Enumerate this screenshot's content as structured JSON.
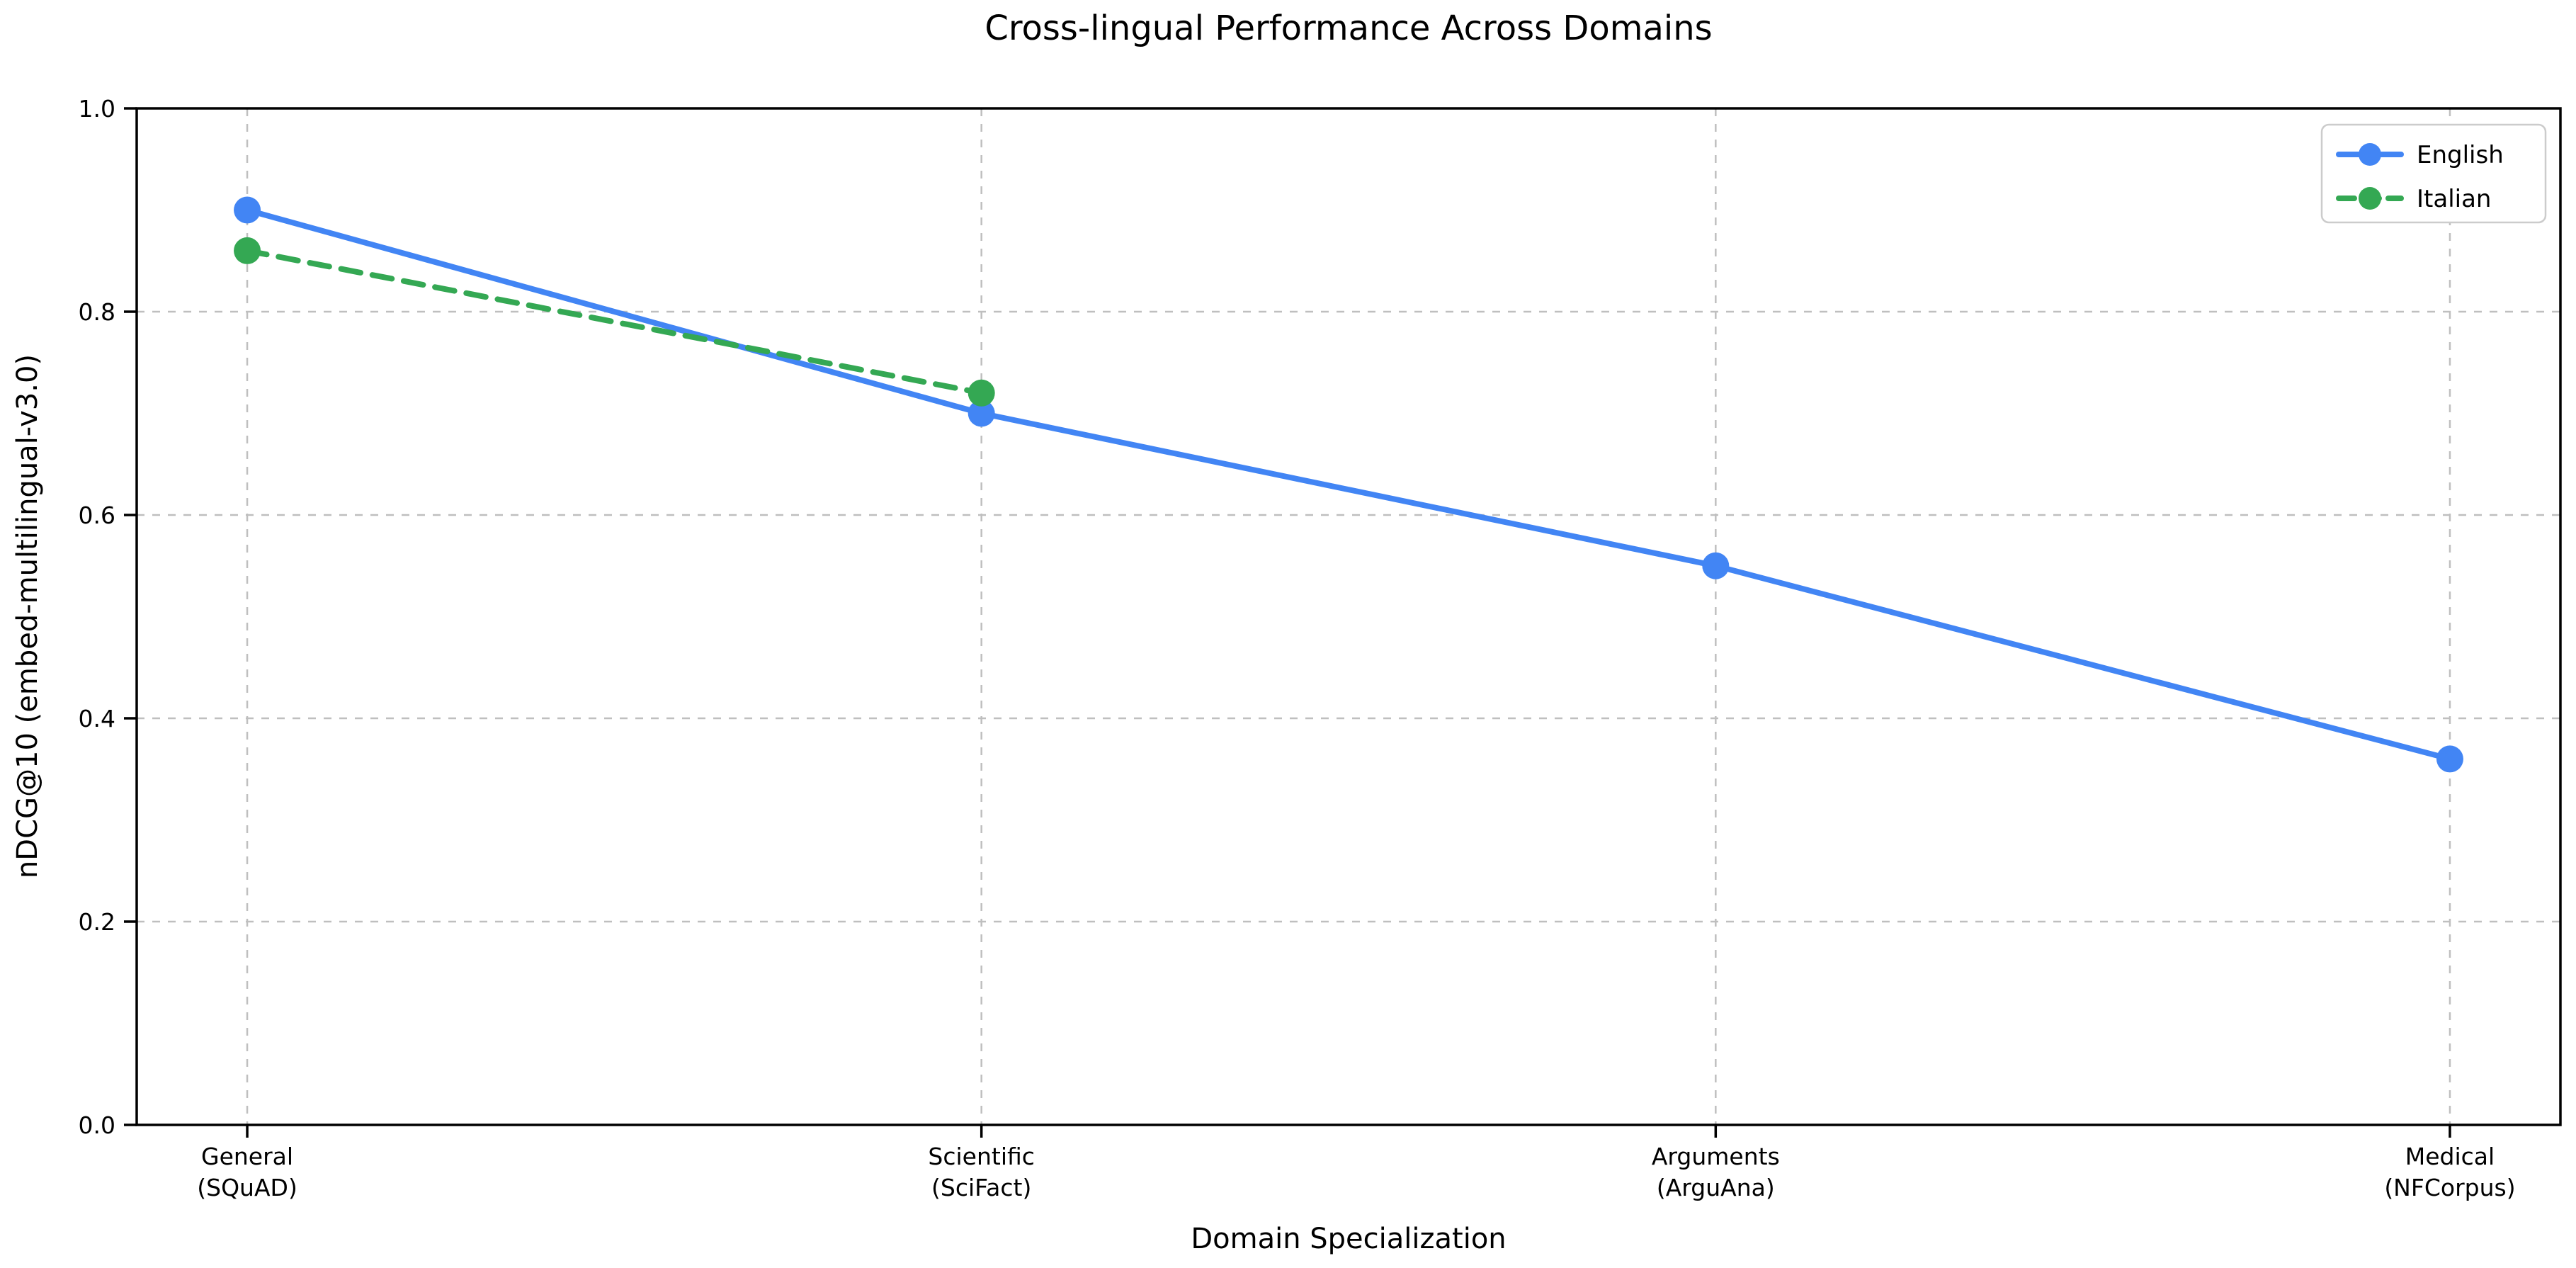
{
  "figure": {
    "background": "#ffffff"
  },
  "chart_data": {
    "type": "line",
    "title": "Cross-lingual Performance Across Domains",
    "xlabel": "Domain Specialization",
    "ylabel": "nDCG@10 (embed-multilingual-v3.0)",
    "categories": [
      "General\n(SQuAD)",
      "Scientific\n(SciFact)",
      "Arguments\n(ArguAna)",
      "Medical\n(NFCorpus)"
    ],
    "series": [
      {
        "name": "English",
        "color": "#4285f4",
        "style": "solid",
        "values": [
          0.9,
          0.7,
          0.55,
          0.36
        ]
      },
      {
        "name": "Italian",
        "color": "#34a853",
        "style": "dashed",
        "values": [
          0.86,
          0.72,
          null,
          null
        ]
      }
    ],
    "ylim": [
      0.0,
      1.0
    ],
    "yticks": [
      0.0,
      0.2,
      0.4,
      0.6,
      0.8,
      1.0
    ],
    "ytick_labels": [
      "0.0",
      "0.2",
      "0.4",
      "0.6",
      "0.8",
      "1.0"
    ],
    "grid": true,
    "grid_style": "dashed",
    "grid_color": "#bfbfbf",
    "axis_color": "#000000",
    "legend_position": "upper right",
    "legend_border_color": "#cccccc",
    "legend_background": "#ffffff"
  }
}
